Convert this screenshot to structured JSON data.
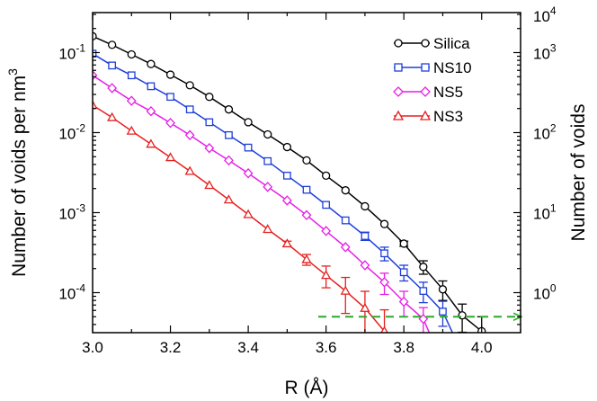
{
  "chart_data": {
    "type": "line",
    "xlabel": "R (Å)",
    "ylabel_left": "Number of voids per nm",
    "ylabel_left_superscript": "3",
    "ylabel_right": "Number of voids",
    "xlim": [
      3.0,
      4.1
    ],
    "ylim_left_log10": [
      -4.5,
      -0.5
    ],
    "ylim_right_log10": [
      -0.5,
      3.5
    ],
    "x_ticks": [
      {
        "value": 3.0,
        "label": "3.0"
      },
      {
        "value": 3.2,
        "label": "3.2"
      },
      {
        "value": 3.4,
        "label": "3.4"
      },
      {
        "value": 3.6,
        "label": "3.6"
      },
      {
        "value": 3.8,
        "label": "3.8"
      },
      {
        "value": 4.0,
        "label": "4.0"
      }
    ],
    "y_ticks_left": [
      {
        "exp": -1,
        "base": "10",
        "sup": "-1"
      },
      {
        "exp": -2,
        "base": "10",
        "sup": "-2"
      },
      {
        "exp": -3,
        "base": "10",
        "sup": "-3"
      },
      {
        "exp": -4,
        "base": "10",
        "sup": "-4"
      }
    ],
    "y_ticks_right": [
      {
        "exp": 0,
        "base": "10",
        "sup": "0"
      },
      {
        "exp": 1,
        "base": "10",
        "sup": "1"
      },
      {
        "exp": 2,
        "base": "10",
        "sup": "2"
      },
      {
        "exp": 3,
        "base": "10",
        "sup": "3"
      },
      {
        "exp": 4,
        "base": "10",
        "sup": "4"
      }
    ],
    "legend_position": "top-right",
    "threshold_arrow": {
      "from_x": 3.58,
      "to_x": 4.1,
      "value_right": 0.5,
      "color": "#2aaa2a"
    },
    "series": [
      {
        "name": "Silica",
        "color": "#000000",
        "marker": "circle",
        "x": [
          3.0,
          3.05,
          3.1,
          3.15,
          3.2,
          3.25,
          3.3,
          3.35,
          3.4,
          3.45,
          3.5,
          3.55,
          3.6,
          3.65,
          3.7,
          3.75,
          3.8,
          3.85,
          3.9,
          3.95,
          4.0
        ],
        "y": [
          0.16,
          0.125,
          0.095,
          0.072,
          0.053,
          0.039,
          0.028,
          0.0195,
          0.0135,
          0.0095,
          0.0066,
          0.0045,
          0.0029,
          0.0019,
          0.0012,
          0.00072,
          0.00041,
          0.00021,
          0.00011,
          5.2e-05,
          3.3e-05
        ],
        "err": [
          0,
          0,
          0,
          0,
          0,
          0,
          0,
          0,
          0,
          0,
          0,
          0,
          0,
          0,
          0,
          0,
          3e-05,
          4e-05,
          3e-05,
          2e-05,
          1.7e-05
        ],
        "tail_to": {
          "x": 4.03,
          "y": 2.8e-05
        }
      },
      {
        "name": "NS10",
        "color": "#1f3fd9",
        "marker": "square",
        "x": [
          3.0,
          3.05,
          3.1,
          3.15,
          3.2,
          3.25,
          3.3,
          3.35,
          3.4,
          3.45,
          3.5,
          3.55,
          3.6,
          3.65,
          3.7,
          3.75,
          3.8,
          3.85,
          3.9
        ],
        "y": [
          0.097,
          0.069,
          0.052,
          0.038,
          0.028,
          0.0195,
          0.0135,
          0.0093,
          0.0065,
          0.0044,
          0.0029,
          0.00193,
          0.00125,
          0.0008,
          0.00051,
          0.00031,
          0.00018,
          0.000105,
          5.8e-05
        ],
        "err": [
          0,
          0,
          0,
          0,
          0,
          0,
          0,
          0,
          0,
          0,
          0,
          0,
          0,
          0,
          6e-05,
          6e-05,
          4e-05,
          3e-05,
          2e-05
        ],
        "tail_to": {
          "x": 3.93,
          "y": 2.8e-05
        }
      },
      {
        "name": "NS5",
        "color": "#e61fe6",
        "marker": "diamond",
        "x": [
          3.0,
          3.05,
          3.1,
          3.15,
          3.2,
          3.25,
          3.3,
          3.35,
          3.4,
          3.45,
          3.5,
          3.55,
          3.6,
          3.65,
          3.7,
          3.75,
          3.8,
          3.85
        ],
        "y": [
          0.052,
          0.036,
          0.025,
          0.0185,
          0.0132,
          0.0093,
          0.0064,
          0.0045,
          0.0031,
          0.0021,
          0.00142,
          0.00093,
          0.00059,
          0.00037,
          0.00022,
          0.000135,
          7.7e-05,
          4.7e-05
        ],
        "err": [
          0,
          0,
          0,
          0,
          0,
          0,
          0,
          0,
          0,
          0,
          0,
          0,
          0,
          0,
          0,
          4e-05,
          2.7e-05,
          1.8e-05
        ],
        "tail_to": {
          "x": 3.87,
          "y": 2.8e-05
        }
      },
      {
        "name": "NS3",
        "color": "#e61f1f",
        "marker": "triangle",
        "x": [
          3.0,
          3.05,
          3.1,
          3.15,
          3.2,
          3.25,
          3.3,
          3.35,
          3.4,
          3.45,
          3.5,
          3.55,
          3.6,
          3.65,
          3.7,
          3.75
        ],
        "y": [
          0.022,
          0.0155,
          0.0105,
          0.0072,
          0.0049,
          0.0033,
          0.0022,
          0.00145,
          0.00095,
          0.00062,
          0.00041,
          0.00026,
          0.000165,
          0.000105,
          6.4e-05,
          3.3e-05
        ],
        "err": [
          0,
          0,
          0,
          0,
          0,
          0,
          0,
          0,
          0,
          0,
          3e-05,
          4e-05,
          5e-05,
          5e-05,
          4e-05,
          2.8e-05
        ],
        "tail_to": {
          "x": 3.78,
          "y": 2.8e-05
        }
      }
    ]
  }
}
